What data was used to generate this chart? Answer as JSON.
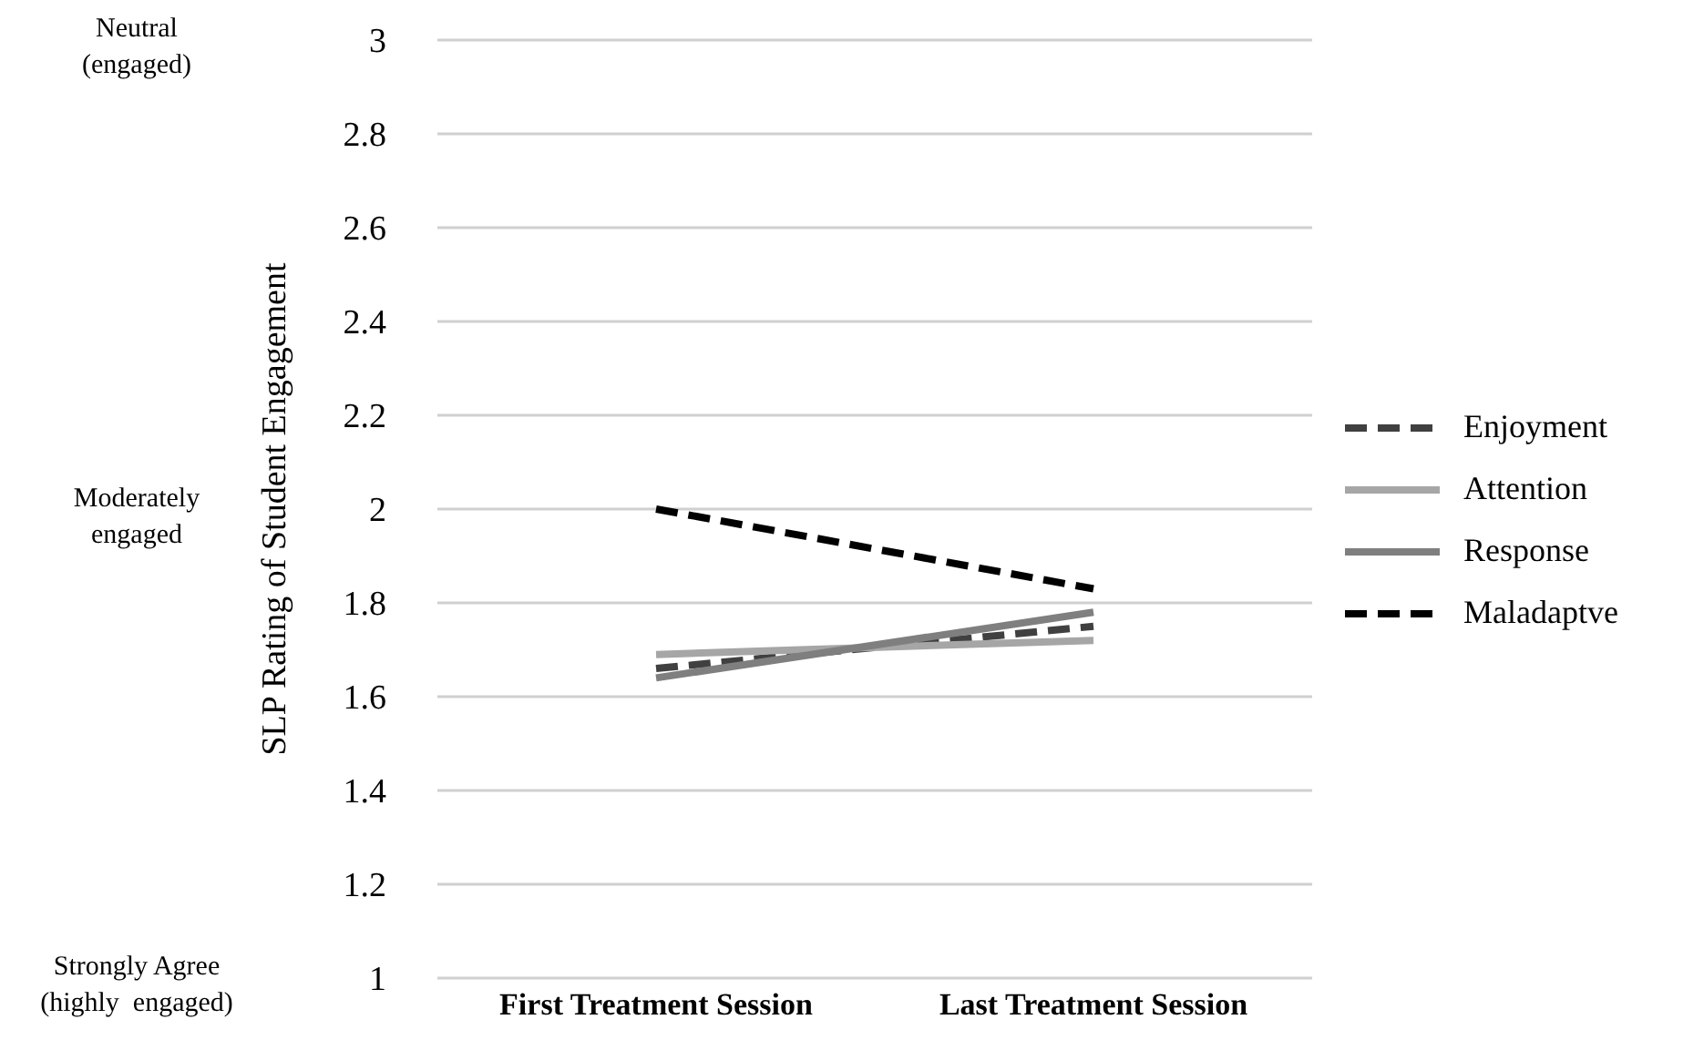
{
  "chart_data": {
    "type": "line",
    "ylabel": "SLP Rating of Student Engagement",
    "categories": [
      "First Treatment Session",
      "Last Treatment Session"
    ],
    "series": [
      {
        "name": "Enjoyment",
        "color": "#404040",
        "line_style": "dashed",
        "values": [
          1.66,
          1.75
        ]
      },
      {
        "name": "Attention",
        "color": "#a6a6a6",
        "line_style": "solid",
        "values": [
          1.69,
          1.72
        ]
      },
      {
        "name": "Response",
        "color": "#7f7f7f",
        "line_style": "solid",
        "values": [
          1.64,
          1.78
        ]
      },
      {
        "name": "Maladaptve",
        "color": "#000000",
        "line_style": "dashed",
        "values": [
          2.0,
          1.83
        ]
      }
    ],
    "ylim": [
      1,
      3
    ],
    "yticks": [
      1,
      1.2,
      1.4,
      1.6,
      1.8,
      2,
      2.2,
      2.4,
      2.6,
      2.8,
      3
    ],
    "grid": "y",
    "legend": "right",
    "marker": "none",
    "annotations": [
      "Neutral\n(engaged)",
      "Moderately\nengaged",
      "Strongly Agree\n(highly  engaged)"
    ]
  }
}
